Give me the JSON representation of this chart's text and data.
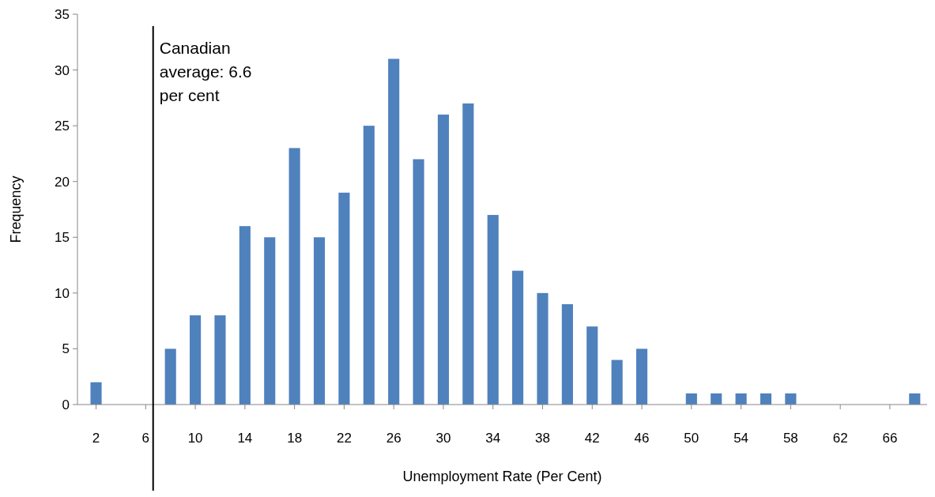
{
  "chart_data": {
    "type": "bar",
    "xlabel": "Unemployment Rate (Per Cent)",
    "ylabel": "Frequency",
    "x": [
      2,
      4,
      6,
      8,
      10,
      12,
      14,
      16,
      18,
      20,
      22,
      24,
      26,
      28,
      30,
      32,
      34,
      36,
      38,
      40,
      42,
      44,
      46,
      48,
      50,
      52,
      54,
      56,
      58,
      60,
      62,
      64,
      66,
      68
    ],
    "values": [
      2,
      0,
      0,
      5,
      8,
      8,
      16,
      15,
      23,
      15,
      19,
      25,
      31,
      22,
      26,
      27,
      17,
      12,
      10,
      9,
      7,
      4,
      5,
      0,
      1,
      1,
      1,
      1,
      1,
      0,
      0,
      0,
      0,
      1
    ],
    "color": "#4f81bd",
    "xlim": [
      0.5,
      69
    ],
    "xticks": [
      2,
      6,
      10,
      14,
      18,
      22,
      26,
      30,
      34,
      38,
      42,
      46,
      50,
      54,
      58,
      62,
      66
    ],
    "ylim": [
      0,
      35
    ],
    "yticks": [
      0,
      5,
      10,
      15,
      20,
      25,
      30,
      35
    ],
    "ref_lines": [
      {
        "axis": "x",
        "value": 6.6,
        "label": "Canadian average: 6.6 per cent",
        "color": "#000000"
      }
    ],
    "grid": false
  }
}
